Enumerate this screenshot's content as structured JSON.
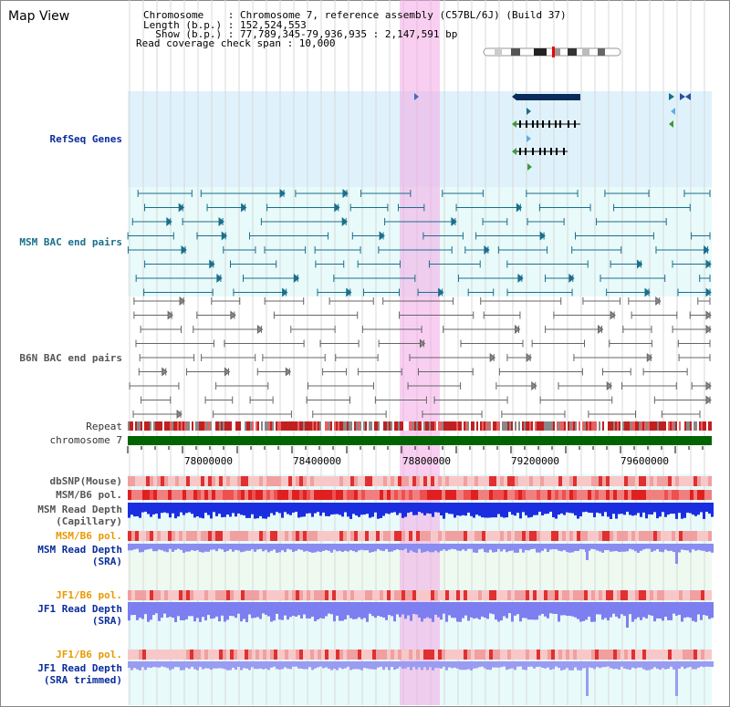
{
  "title": "Map View",
  "info": {
    "line1": "Chromosome    : Chromosome 7, reference assembly (C57BL/6J) (Build 37)",
    "line2": "Length (b.p.) : 152,524,553",
    "line3": "  Show (b.p.) : 77,789,345-79,936,935 : 2,147,591 bp",
    "line4": "Read coverage check span : 10,000"
  },
  "labels": {
    "refseq": "RefSeq Genes",
    "msm_bac": "MSM BAC end pairs",
    "b6n_bac": "B6N BAC end pairs",
    "repeat": "Repeat",
    "chromosome": "chromosome 7",
    "dbsnp": "dbSNP(Mouse)",
    "msm_b6_pol_1": "MSM/B6 pol.",
    "msm_depth_cap_1": "MSM Read Depth",
    "msm_depth_cap_2": "(Capillary)",
    "msm_b6_pol_2": "MSM/B6 pol.",
    "msm_depth_sra_1": "MSM Read Depth",
    "msm_depth_sra_2": "(SRA)",
    "jf1_pol_1": "JF1/B6 pol.",
    "jf1_depth_1": "JF1 Read Depth",
    "jf1_depth_2": "(SRA)",
    "jf1_pol_2": "JF1/B6 pol.",
    "jf1_depth_trim_1": "JF1 Read Depth",
    "jf1_depth_trim_2": "(SRA trimmed)"
  },
  "ticks": [
    "78000000",
    "78400000",
    "78800000",
    "79200000",
    "79600000"
  ],
  "colors": {
    "refseq_bg": "#dff2fb",
    "bac_bg": "#e8fafa",
    "highlight": "#f7d8f0",
    "chromosome_bar": "#006400",
    "gene_dark": "#0a2c5c",
    "msm_feature": "#1a6f8c",
    "b6n_feature": "#666666",
    "depth_blue": "#1a2ee0",
    "depth_lavender": "#7d7ef0"
  }
}
